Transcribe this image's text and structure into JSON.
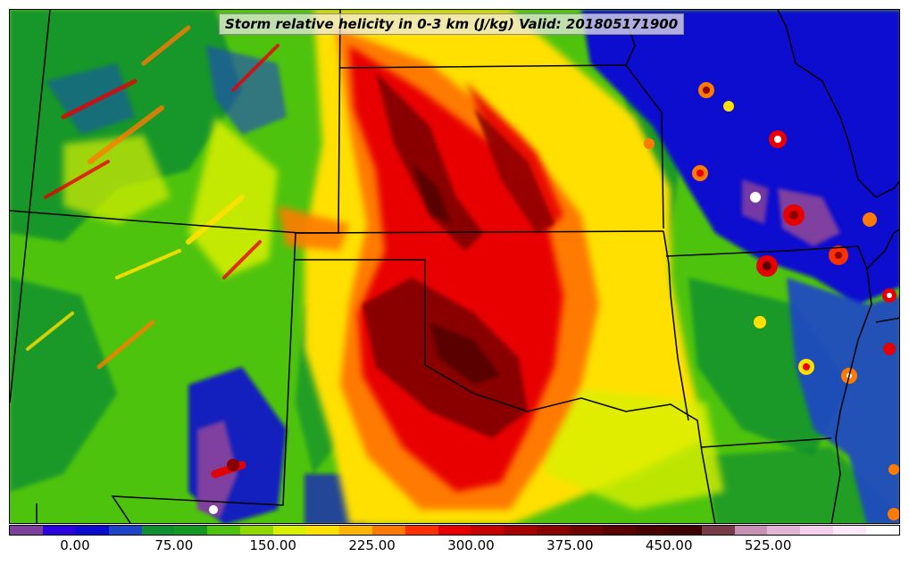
{
  "title": "Storm relative helicity in 0-3 km (J/kg) Valid: 201805171900",
  "colorbar": {
    "colors": [
      "#7f3f9f",
      "#2a00e0",
      "#0a0ad0",
      "#1c45c8",
      "#0f8f2f",
      "#139a22",
      "#4ec30e",
      "#8fd800",
      "#d8ef00",
      "#ffe000",
      "#ffb400",
      "#ff7a00",
      "#ff3000",
      "#e80000",
      "#c80000",
      "#a80000",
      "#8a0000",
      "#6e0000",
      "#5a0000",
      "#4a0000",
      "#3e0000",
      "#7a3a4a",
      "#c890b4",
      "#e4b4d6",
      "#f4d0ec",
      "#ffe8fa",
      "#ffffff"
    ],
    "tick_labels": [
      "0.00",
      "75.00",
      "150.00",
      "225.00",
      "300.00",
      "375.00",
      "450.00",
      "525.00"
    ],
    "tick_values": [
      0,
      75,
      150,
      225,
      300,
      375,
      450,
      525
    ],
    "range": [
      -50,
      625
    ]
  },
  "map": {
    "region": "Central and southern Great Plains, United States",
    "background_color": "#4ec30e",
    "field_palette": {
      "light_green": "#4ec30e",
      "dark_green": "#0f8f2f",
      "blue": "#0a0ad0",
      "purple": "#7f3f9f",
      "yellow": "#ffe000",
      "orange": "#ff7a00",
      "red": "#e80000",
      "dark_red": "#8a0000",
      "maroon": "#5a0000",
      "white": "#ffffff"
    }
  }
}
